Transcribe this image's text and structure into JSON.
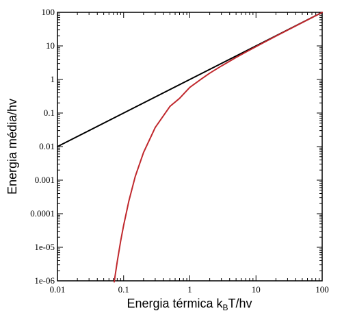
{
  "chart_data": {
    "type": "line",
    "xscale": "log",
    "yscale": "log",
    "xlim": [
      0.01,
      100
    ],
    "ylim": [
      1e-06,
      100
    ],
    "xlabel_parts": [
      "Energia térmica k",
      "B",
      "T/hv"
    ],
    "ylabel": "Energia média/hv",
    "x_ticks": [
      "0.01",
      "0.1",
      "1",
      "10",
      "100"
    ],
    "y_ticks": [
      "1e-06",
      "1e-05",
      "0.0001",
      "0.001",
      "0.01",
      "0.1",
      "1",
      "10",
      "100"
    ],
    "grid": false,
    "series": [
      {
        "color": "#000000",
        "x": [
          0.01,
          0.1,
          1,
          10,
          100
        ],
        "y": [
          0.01,
          0.1,
          1,
          10,
          100
        ]
      },
      {
        "color": "#c0282d",
        "x": [
          0.072,
          0.08,
          0.09,
          0.1,
          0.12,
          0.15,
          0.2,
          0.3,
          0.5,
          0.7,
          1,
          1.5,
          2,
          3,
          5,
          7,
          10,
          20,
          50,
          100
        ],
        "y": [
          9.3e-07,
          3.7e-06,
          1.5e-05,
          4.5e-05,
          0.00024,
          0.0013,
          0.0067,
          0.037,
          0.157,
          0.274,
          0.582,
          1.04,
          1.54,
          2.52,
          4.52,
          6.51,
          9.51,
          19.5,
          49.5,
          99.5
        ]
      }
    ]
  }
}
